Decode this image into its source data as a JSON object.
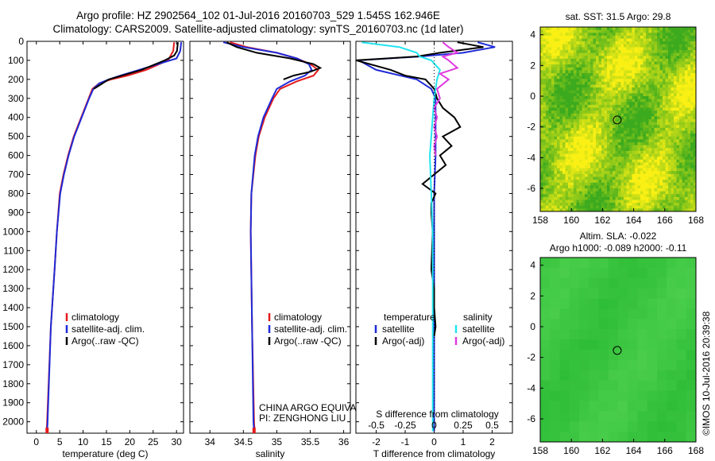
{
  "header": {
    "title_line1": "Argo profile: HZ 2902564_102 01-Jul-2016 20160703_529 1.545S 162.946E",
    "title_line2": "Climatology: CARS2009. Satellite-adjusted climatology: synTS_20160703.nc (1d later)"
  },
  "colors": {
    "climatology": "#e41a1c",
    "satellite": "#1f2bd6",
    "argo": "#000000",
    "sal_satellite": "#22e5f0",
    "sal_argo": "#e03be0"
  },
  "chart_data": [
    {
      "type": "line",
      "name": "temperature-profile",
      "xlabel": "temperature (deg C)",
      "ylabel": "",
      "xlim": [
        -2,
        31.5
      ],
      "ylim": [
        2060,
        0
      ],
      "xticks": [
        0,
        5,
        10,
        15,
        20,
        25,
        30
      ],
      "yticks": [
        0,
        100,
        200,
        300,
        400,
        500,
        600,
        700,
        800,
        900,
        1000,
        1100,
        1200,
        1300,
        1400,
        1500,
        1600,
        1700,
        1800,
        1900,
        2000
      ],
      "legend": [
        "climatology",
        "satellite-adj. clim.",
        "Argo(..raw -QC)"
      ],
      "series": [
        {
          "name": "climatology",
          "color_key": "climatology",
          "depth": [
            5,
            50,
            100,
            150,
            180,
            200,
            220,
            250,
            300,
            400,
            500,
            600,
            700,
            800,
            1000,
            1200,
            1500,
            2000,
            2050
          ],
          "values": [
            29.5,
            29.3,
            28.2,
            23.5,
            19.5,
            16,
            13.5,
            12,
            11.2,
            9.6,
            8,
            6.8,
            5.8,
            5,
            4.4,
            3.9,
            3.1,
            2.3,
            2.2
          ]
        },
        {
          "name": "satellite-adj. clim.",
          "color_key": "satellite",
          "depth": [
            5,
            50,
            90,
            120,
            150,
            180,
            200,
            220,
            250,
            300,
            400,
            500,
            600,
            700,
            800,
            1000,
            1200,
            1500,
            2000,
            2050
          ],
          "values": [
            31,
            30.8,
            30,
            26,
            22,
            18,
            15.5,
            13.5,
            12.2,
            11.3,
            9.7,
            8.1,
            6.9,
            5.9,
            5.1,
            4.4,
            3.9,
            3.1,
            2.4,
            2.3
          ]
        },
        {
          "name": "Argo(..raw -QC)",
          "color_key": "argo",
          "depth": [
            5,
            50,
            75,
            100,
            150,
            200,
            250
          ],
          "values": [
            30.3,
            30.1,
            29.5,
            27.5,
            22.5,
            15.5,
            12.3
          ]
        }
      ]
    },
    {
      "type": "line",
      "name": "salinity-profile",
      "xlabel": "salinity",
      "ylabel": "",
      "xlim": [
        33.7,
        36.1
      ],
      "ylim": [
        2060,
        0
      ],
      "xticks": [
        34,
        34.5,
        35,
        35.5,
        36
      ],
      "legend": [
        "climatology",
        "satellite-adj. clim.",
        "Argo(..raw -QC)"
      ],
      "annotation_line1": "CHINA ARGO EQUIVALENT",
      "annotation_line2": "PI: ZENGHONG LIU",
      "series": [
        {
          "name": "climatology",
          "color_key": "climatology",
          "depth": [
            5,
            30,
            60,
            90,
            120,
            150,
            180,
            210,
            250,
            300,
            400,
            500,
            600,
            800,
            1000,
            1500,
            2000,
            2050
          ],
          "values": [
            34.3,
            34.55,
            35.0,
            35.3,
            35.5,
            35.62,
            35.55,
            35.3,
            35.05,
            34.95,
            34.82,
            34.73,
            34.68,
            34.62,
            34.61,
            34.63,
            34.66,
            34.67
          ]
        },
        {
          "name": "satellite-adj. clim.",
          "color_key": "satellite",
          "depth": [
            5,
            30,
            60,
            90,
            120,
            150,
            180,
            210,
            250,
            300,
            400,
            500,
            600,
            800,
            1000,
            1500,
            2000,
            2050
          ],
          "values": [
            34.2,
            34.5,
            35.0,
            35.3,
            35.48,
            35.52,
            35.42,
            35.2,
            35.0,
            34.93,
            34.8,
            34.72,
            34.67,
            34.62,
            34.61,
            34.63,
            34.65,
            34.66
          ]
        },
        {
          "name": "Argo(..raw -QC)",
          "color_key": "argo",
          "depth": [
            5,
            30,
            60,
            90,
            120,
            140,
            160,
            180,
            200
          ],
          "values": [
            34.25,
            34.4,
            34.7,
            35.2,
            35.55,
            35.65,
            35.5,
            35.25,
            35.1
          ]
        }
      ]
    },
    {
      "type": "line",
      "name": "difference-profile",
      "xlabel": "T difference from climatology",
      "xlabel_top": "S difference from climatology",
      "xlim": [
        -2.7,
        2.7
      ],
      "ylim": [
        2060,
        0
      ],
      "xticks": [
        -2,
        -1,
        0,
        1,
        2
      ],
      "s_ticks": [
        -0.5,
        -0.25,
        0,
        0.25,
        0.5
      ],
      "legend_temperature_title": "temperature",
      "legend_salinity_title": "salinity",
      "legend_satellite": "satellite",
      "legend_argo": "Argo(-adj)",
      "series": [
        {
          "name": "temperature satellite",
          "color_key": "satellite",
          "depth": [
            5,
            30,
            60,
            80,
            100,
            150,
            200,
            250,
            300,
            400,
            500,
            600,
            800,
            1000,
            1500,
            2000,
            2050
          ],
          "values": [
            1.5,
            2.1,
            1.0,
            -0.5,
            -2.6,
            -2.0,
            -0.6,
            -0.1,
            0.05,
            0.05,
            0.05,
            0.05,
            0,
            0,
            0,
            0,
            0
          ]
        },
        {
          "name": "temperature Argo(-adj)",
          "color_key": "argo",
          "depth": [
            5,
            30,
            60,
            80,
            100,
            150,
            180,
            200,
            250,
            300,
            350,
            400,
            450,
            500,
            550,
            600,
            650,
            700,
            750,
            800,
            850,
            900,
            1000,
            1200,
            1300,
            1400,
            1500,
            1550
          ],
          "values": [
            0.8,
            1.7,
            0.2,
            -0.6,
            -2.7,
            -1.5,
            -1.0,
            -0.3,
            0.0,
            0.1,
            0.3,
            0.7,
            0.9,
            0.3,
            0.6,
            0.2,
            0.4,
            0.0,
            -0.4,
            0.05,
            -0.1,
            -0.1,
            -0.05,
            -0.1,
            0.0,
            0.0,
            0.05,
            0.0
          ]
        },
        {
          "name": "salinity satellite",
          "color_key": "sal_satellite",
          "depth": [
            5,
            30,
            60,
            80,
            100,
            150,
            200,
            250,
            300,
            400,
            500,
            600,
            800,
            1000,
            1500,
            2000,
            2050
          ],
          "values": [
            -2.5,
            -1.2,
            -0.6,
            -0.5,
            -0.1,
            0.2,
            0.1,
            0.05,
            0,
            -0.05,
            -0.1,
            -0.15,
            -0.1,
            -0.05,
            -0.05,
            -0.05,
            -0.05
          ]
        },
        {
          "name": "salinity Argo(-adj)",
          "color_key": "sal_argo",
          "depth": [
            5,
            30,
            60,
            80,
            100,
            140,
            170,
            200,
            250,
            300,
            350,
            400,
            450,
            500,
            550,
            600
          ],
          "values": [
            0.3,
            0.5,
            0.8,
            0.3,
            0.5,
            0.8,
            0.2,
            0.5,
            0.1,
            0.2,
            0.0,
            0.1,
            0.0,
            0.1,
            0.0,
            0.05
          ]
        }
      ]
    },
    {
      "type": "heatmap",
      "name": "sst-map",
      "title": "sat. SST: 31.5 Argo: 29.8",
      "xlim": [
        158,
        168
      ],
      "ylim": [
        -7.5,
        4.5
      ],
      "xticks": [
        158,
        160,
        162,
        164,
        166,
        168
      ],
      "yticks": [
        4,
        2,
        0,
        -2,
        -4,
        -6
      ],
      "marker": {
        "lon": 162.946,
        "lat": -1.545
      }
    },
    {
      "type": "heatmap",
      "name": "sla-map",
      "title_line1": "Altim. SLA: -0.022",
      "title_line2": "Argo h1000: -0.089 h2000: -0.11",
      "xlim": [
        158,
        168
      ],
      "ylim": [
        -7.5,
        4.5
      ],
      "xticks": [
        158,
        160,
        162,
        164,
        166,
        168
      ],
      "yticks": [
        4,
        2,
        0,
        -2,
        -4,
        -6
      ],
      "marker": {
        "lon": 162.946,
        "lat": -1.545
      }
    }
  ],
  "footer": {
    "credit": "©IMOS 10-Jul-2016 20:39:38"
  }
}
